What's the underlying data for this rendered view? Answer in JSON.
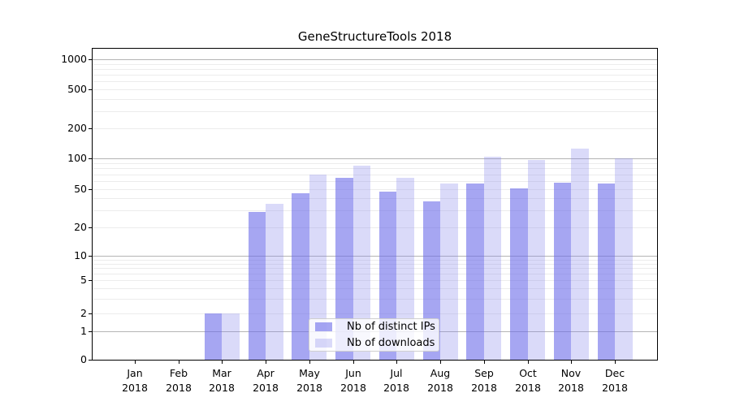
{
  "chart_data": {
    "type": "bar",
    "title": "GeneStructureTools 2018",
    "categories": [
      "Jan",
      "Feb",
      "Mar",
      "Apr",
      "May",
      "Jun",
      "Jul",
      "Aug",
      "Sep",
      "Oct",
      "Nov",
      "Dec"
    ],
    "x_year_label": "2018",
    "series": [
      {
        "name": "Nb of distinct IPs",
        "color": "rgba(107,107,233,0.6)",
        "values": [
          0,
          0,
          2,
          29,
          45,
          65,
          47,
          37,
          57,
          51,
          58,
          57
        ]
      },
      {
        "name": "Nb of downloads",
        "color": "rgba(132,132,235,0.3)",
        "values": [
          0,
          0,
          2,
          35,
          69,
          85,
          65,
          57,
          103,
          97,
          125,
          100
        ]
      }
    ],
    "y_scale": "symlog",
    "y_ticks": [
      0,
      1,
      2,
      5,
      10,
      20,
      50,
      100,
      200,
      500,
      1000
    ],
    "y_range": [
      0,
      1300
    ],
    "grid": true,
    "grid_major_color": "#b4b4b4",
    "grid_minor_color": "#ececec",
    "legend_position": "lower center"
  }
}
